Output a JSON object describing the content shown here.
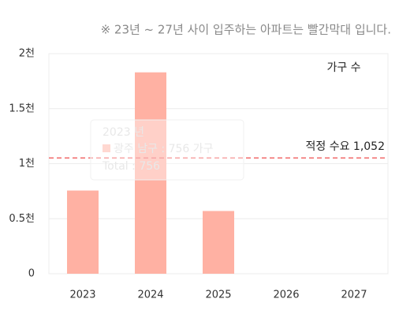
{
  "chart_data": {
    "type": "bar",
    "title": "※ 23년 ~ 27년 사이 입주하는 아파트는 빨간막대 입니다.",
    "categories": [
      "2023",
      "2024",
      "2025",
      "2026",
      "2027"
    ],
    "series": [
      {
        "name": "가구 수",
        "color": "#ffb1a3",
        "values": [
          756,
          1830,
          570,
          null,
          null
        ]
      }
    ],
    "ylim": [
      0,
      2000
    ],
    "yticks": [
      0,
      {
        "value": 500,
        "label": "0.5천"
      },
      {
        "value": 1000,
        "label": "1천"
      },
      {
        "value": 1500,
        "label": "1.5천"
      },
      {
        "value": 2000,
        "label": "2천"
      }
    ],
    "grid": true,
    "reference_line": {
      "value": 1052,
      "label": "적정 수요 1,052",
      "color": "#f26b6b"
    },
    "tooltip": {
      "title": "2023 년",
      "label": "광주 남구 : 756 가구",
      "total": "Total : 756"
    }
  }
}
